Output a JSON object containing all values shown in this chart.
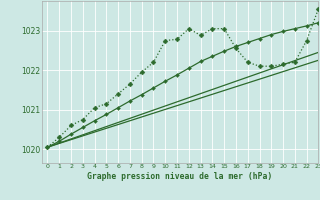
{
  "title": "Graphe pression niveau de la mer (hPa)",
  "bg_color": "#cde8e4",
  "grid_color": "#ffffff",
  "line_color": "#2d6b2d",
  "xlim": [
    -0.5,
    23
  ],
  "ylim": [
    1019.65,
    1023.75
  ],
  "yticks": [
    1020,
    1021,
    1022,
    1023
  ],
  "xticks": [
    0,
    1,
    2,
    3,
    4,
    5,
    6,
    7,
    8,
    9,
    10,
    11,
    12,
    13,
    14,
    15,
    16,
    17,
    18,
    19,
    20,
    21,
    22,
    23
  ],
  "series_wavy_x": [
    0,
    1,
    2,
    3,
    4,
    5,
    6,
    7,
    8,
    9,
    10,
    11,
    12,
    13,
    14,
    15,
    16,
    17,
    18,
    19,
    20,
    21,
    22,
    23
  ],
  "series_wavy_y": [
    1020.05,
    1020.3,
    1020.6,
    1020.75,
    1021.05,
    1021.15,
    1021.4,
    1021.65,
    1021.95,
    1022.2,
    1022.75,
    1022.78,
    1023.05,
    1022.88,
    1023.05,
    1023.05,
    1022.55,
    1022.2,
    1022.1,
    1022.1,
    1022.15,
    1022.2,
    1022.75,
    1023.55
  ],
  "series_line1_x": [
    0,
    23
  ],
  "series_line1_y": [
    1020.05,
    1022.25
  ],
  "series_line2_x": [
    0,
    23
  ],
  "series_line2_y": [
    1020.05,
    1022.45
  ],
  "series_line3_x": [
    0,
    1,
    2,
    3,
    4,
    5,
    6,
    7,
    8,
    9,
    10,
    11,
    12,
    13,
    14,
    15,
    16,
    17,
    18,
    19,
    20,
    21,
    22,
    23
  ],
  "series_line3_y": [
    1020.05,
    1020.2,
    1020.38,
    1020.55,
    1020.72,
    1020.88,
    1021.05,
    1021.22,
    1021.38,
    1021.55,
    1021.72,
    1021.88,
    1022.05,
    1022.22,
    1022.35,
    1022.48,
    1022.6,
    1022.7,
    1022.8,
    1022.9,
    1022.98,
    1023.05,
    1023.12,
    1023.2
  ]
}
